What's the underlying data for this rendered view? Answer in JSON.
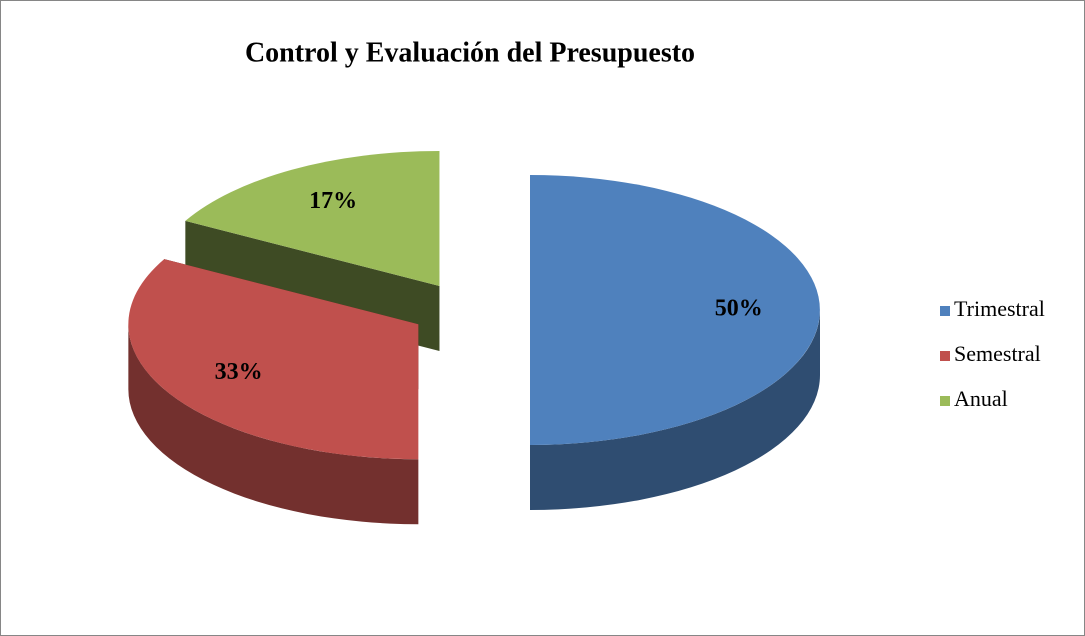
{
  "chart_data": {
    "type": "pie",
    "title": "Control y Evaluación del Presupuesto",
    "categories": [
      "Trimestral",
      "Semestral",
      "Anual"
    ],
    "values": [
      50,
      33,
      17
    ],
    "value_labels": [
      "50%",
      "33%",
      "17%"
    ],
    "colors": [
      "#4f81bd",
      "#c0504d",
      "#9bbb59"
    ],
    "legend": "right"
  }
}
